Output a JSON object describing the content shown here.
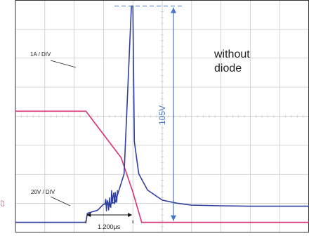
{
  "chart_data": {
    "type": "line",
    "description_labels": {
      "annotation": "without\ndiode",
      "peak_label": "105V",
      "time_label": "1.200µs",
      "ch_marker": "C2"
    },
    "series": [
      {
        "name": "1A / DIV",
        "color": "#d6337a",
        "x": [
          0,
          2.4,
          3.6,
          4.0,
          4.3,
          10
        ],
        "y": [
          5.5,
          5.5,
          3.2,
          1.5,
          0.0,
          0.0
        ]
      },
      {
        "name": "20V / DIV",
        "color": "#2f3f9e",
        "x": [
          0,
          2.4,
          2.45,
          2.8,
          3.0,
          3.2,
          3.4,
          3.7,
          3.95,
          4.0,
          4.05,
          4.2,
          4.5,
          5.0,
          5.5,
          6.0,
          7.0,
          8.0,
          10
        ],
        "y": [
          0.0,
          0.0,
          0.45,
          0.6,
          0.9,
          0.9,
          1.0,
          2.4,
          10.7,
          10.7,
          4.0,
          2.4,
          1.6,
          1.1,
          0.95,
          0.85,
          0.82,
          0.8,
          0.8
        ]
      }
    ],
    "xlim": [
      0,
      10
    ],
    "ylim": [
      -0.5,
      11
    ],
    "grid": true,
    "colors": {
      "grid": "#c9c9c9",
      "border": "#333333",
      "annotation": "#4a78c2"
    }
  }
}
